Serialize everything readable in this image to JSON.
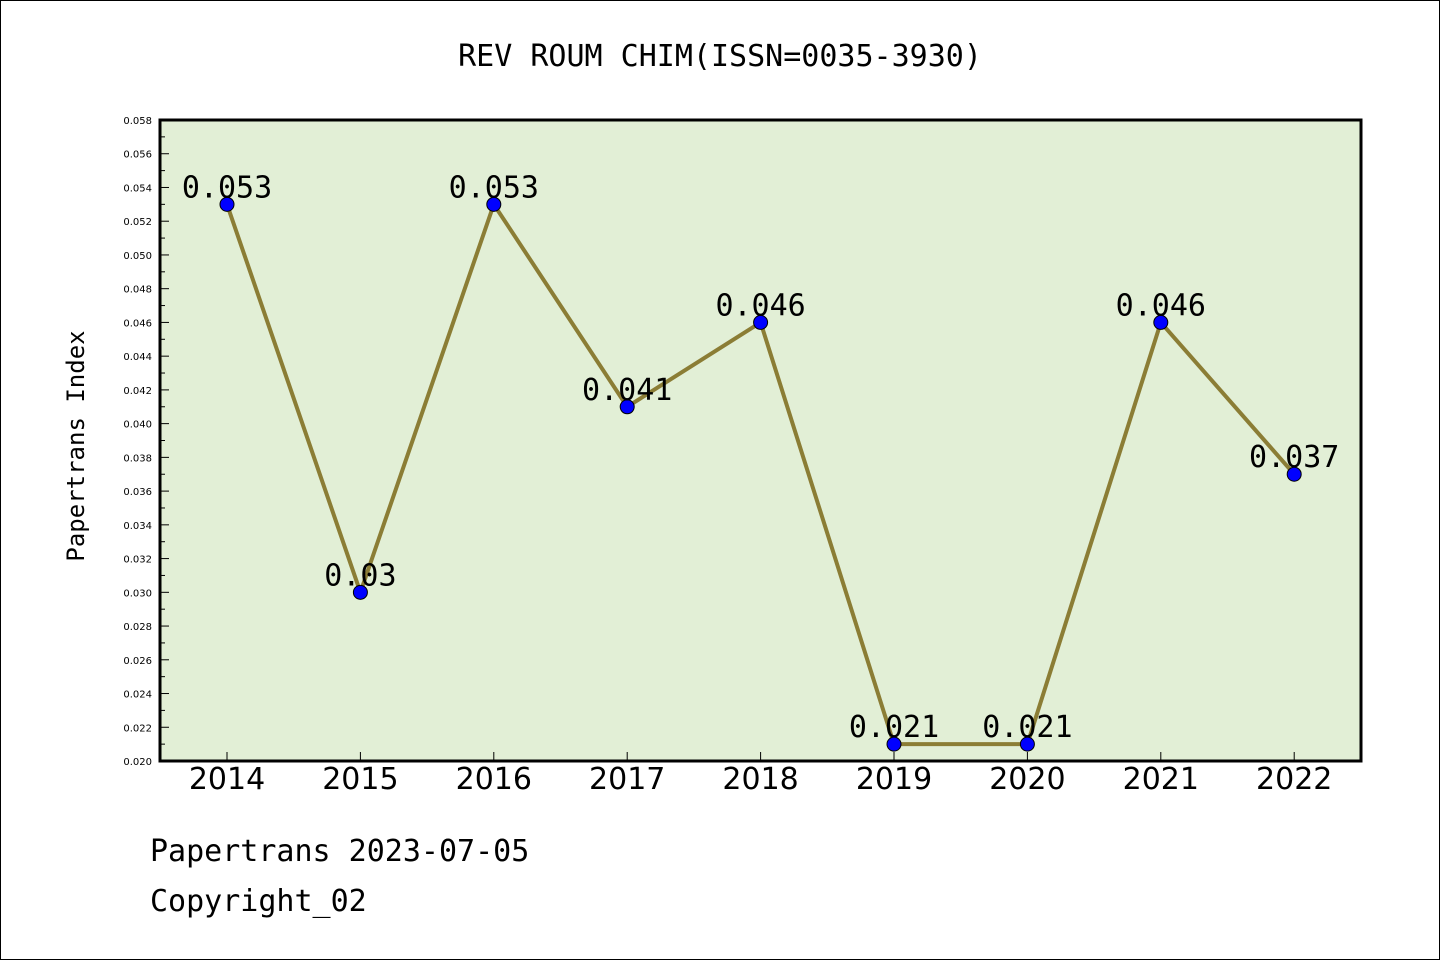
{
  "chart_data": {
    "type": "line",
    "title": "REV ROUM CHIM(ISSN=0035-3930)",
    "ylabel": "Papertrans Index",
    "xlabel": "",
    "categories": [
      "2014",
      "2015",
      "2016",
      "2017",
      "2018",
      "2019",
      "2020",
      "2021",
      "2022"
    ],
    "series": [
      {
        "values": [
          0.053,
          0.03,
          0.053,
          0.041,
          0.046,
          0.021,
          0.021,
          0.046,
          0.037
        ]
      }
    ],
    "data_labels": [
      "0.053",
      "0.03",
      "0.053",
      "0.041",
      "0.046",
      "0.021",
      "0.021",
      "0.046",
      "0.037"
    ],
    "ylim": [
      0.02,
      0.058
    ],
    "yticks": [
      "0.020",
      "0.022",
      "0.024",
      "0.026",
      "0.028",
      "0.030",
      "0.032",
      "0.034",
      "0.036",
      "0.038",
      "0.040",
      "0.042",
      "0.044",
      "0.046",
      "0.048",
      "0.050",
      "0.052",
      "0.054",
      "0.056",
      "0.058"
    ],
    "grid": false,
    "colors": {
      "plot_bg": "#e2efd6",
      "line": "#8b7d35",
      "marker": "#0000ff"
    }
  },
  "footer": {
    "date_text": "Papertrans 2023-07-05",
    "copyright_text": "Copyright_02"
  }
}
